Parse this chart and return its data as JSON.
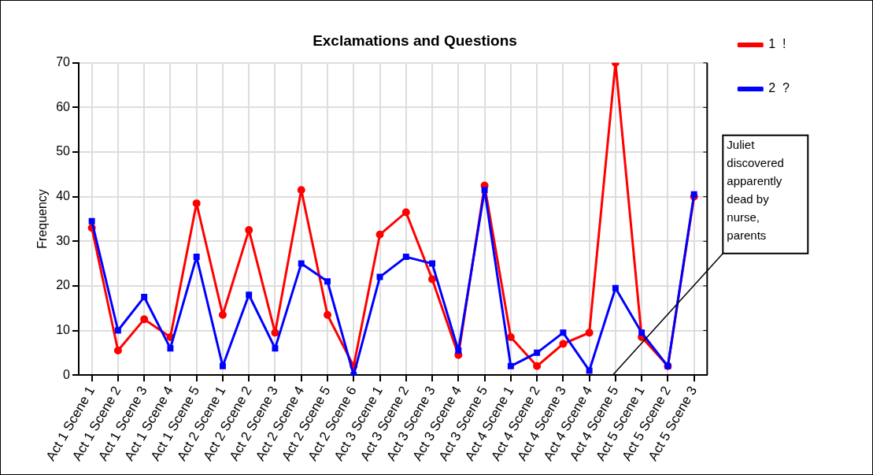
{
  "chart_data": {
    "type": "line",
    "title": "Exclamations and Questions",
    "ylabel": "Frequency",
    "categories": [
      "Act 1 Scene 1",
      "Act 1 Scene 2",
      "Act 1 Scene 3",
      "Act 1 Scene 4",
      "Act 1 Scene 5",
      "Act 2 Scene 1",
      "Act 2 Scene 2",
      "Act 2 Scene 3",
      "Act 2 Scene 4",
      "Act 2 Scene 5",
      "Act 2 Scene 6",
      "Act 3 Scene 1",
      "Act 3 Scene 2",
      "Act 3 Scene 3",
      "Act 3 Scene 4",
      "Act 3 Scene 5",
      "Act 4 Scene 1",
      "Act 4 Scene 2",
      "Act 4 Scene 3",
      "Act 4 Scene 4",
      "Act 4 Scene 5",
      "Act 5 Scene 1",
      "Act 5 Scene 2",
      "Act 5 Scene 3"
    ],
    "series": [
      {
        "name": "1  !",
        "color": "#ff0000",
        "marker": "circle",
        "values": [
          33,
          5.5,
          12.5,
          8.5,
          38.5,
          13.5,
          32.5,
          9.5,
          41.5,
          13.5,
          2,
          31.5,
          36.5,
          21.5,
          4.5,
          42.5,
          8.5,
          2,
          7,
          9.5,
          70,
          8.5,
          2,
          40
        ]
      },
      {
        "name": "2  ?",
        "color": "#0000ff",
        "marker": "square",
        "values": [
          34.5,
          10,
          17.5,
          6,
          26.5,
          2,
          18,
          6,
          25,
          21,
          0,
          22,
          26.5,
          25,
          5.5,
          41.5,
          2,
          5,
          9.5,
          1,
          19.5,
          9.5,
          2,
          40.5
        ]
      }
    ],
    "ylim": [
      0,
      70
    ],
    "yticks": [
      0,
      10,
      20,
      30,
      40,
      50,
      60,
      70
    ],
    "grid": true,
    "legend": "top right",
    "line_style": "solid",
    "annotations": [
      "Juliet discovered apparently dead by nurse, parents"
    ]
  }
}
